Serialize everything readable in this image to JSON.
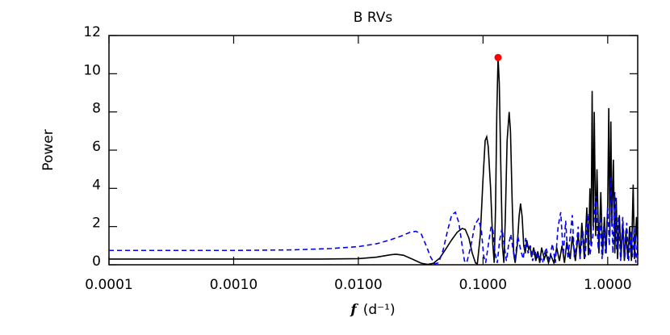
{
  "chart_data": {
    "type": "line",
    "title": "B RVs",
    "ylabel": "Power",
    "xlabel_symbol": "f",
    "xlabel_unit": "(d⁻¹)",
    "xscale": "log",
    "xlim": [
      0.0001,
      1.74
    ],
    "ylim": [
      0,
      12
    ],
    "xticks": [
      {
        "value": 0.0001,
        "label": "0.0001"
      },
      {
        "value": 0.001,
        "label": "0.0010"
      },
      {
        "value": 0.01,
        "label": "0.0100"
      },
      {
        "value": 0.1,
        "label": "0.1000"
      },
      {
        "value": 1,
        "label": "1.0000"
      }
    ],
    "yticks": [
      0,
      2,
      4,
      6,
      8,
      10,
      12
    ],
    "series": [
      {
        "color": "#000000",
        "dash": "solid",
        "x": [
          0.0001,
          0.001,
          0.005,
          0.01,
          0.014,
          0.018,
          0.02,
          0.023,
          0.027,
          0.032,
          0.036,
          0.04,
          0.045,
          0.05,
          0.056,
          0.062,
          0.068,
          0.072,
          0.077,
          0.082,
          0.087,
          0.09,
          0.095,
          0.1,
          0.104,
          0.107,
          0.11,
          0.115,
          0.12,
          0.123,
          0.126,
          0.129,
          0.132,
          0.135,
          0.139,
          0.143,
          0.147,
          0.151,
          0.156,
          0.162,
          0.166,
          0.171,
          0.176,
          0.181,
          0.188,
          0.195,
          0.2,
          0.206,
          0.212,
          0.218,
          0.224,
          0.232,
          0.238,
          0.245,
          0.255,
          0.265,
          0.275,
          0.285,
          0.295,
          0.31,
          0.32,
          0.335,
          0.35,
          0.37,
          0.39,
          0.41,
          0.43,
          0.45,
          0.47,
          0.5,
          0.52,
          0.55,
          0.58,
          0.6,
          0.62,
          0.65,
          0.68,
          0.7,
          0.72,
          0.735,
          0.75,
          0.765,
          0.78,
          0.8,
          0.82,
          0.85,
          0.88,
          0.91,
          0.94,
          0.97,
          1.0,
          1.02,
          1.04,
          1.06,
          1.08,
          1.11,
          1.14,
          1.17,
          1.2,
          1.24,
          1.28,
          1.32,
          1.36,
          1.4,
          1.45,
          1.5,
          1.55,
          1.6,
          1.64,
          1.7,
          1.74
        ],
        "values": [
          0.3,
          0.3,
          0.3,
          0.32,
          0.4,
          0.52,
          0.55,
          0.5,
          0.3,
          0.08,
          0.02,
          0.08,
          0.35,
          0.8,
          1.3,
          1.7,
          1.9,
          1.85,
          1.4,
          0.6,
          0.1,
          0.05,
          1.5,
          4.5,
          6.5,
          6.7,
          6.2,
          4.0,
          1.0,
          0.1,
          3.0,
          8.0,
          10.85,
          9.5,
          5.0,
          1.0,
          0.1,
          2.5,
          6.5,
          8.0,
          7.0,
          3.5,
          0.6,
          0.1,
          1.0,
          2.6,
          3.2,
          2.5,
          1.0,
          0.6,
          1.3,
          0.8,
          1.0,
          0.4,
          0.9,
          0.2,
          0.7,
          0.1,
          0.9,
          0.3,
          0.6,
          0.1,
          0.5,
          0.1,
          0.9,
          0.2,
          1.0,
          0.1,
          1.2,
          0.3,
          1.5,
          0.2,
          1.6,
          0.4,
          2.2,
          0.3,
          3.0,
          0.5,
          4.0,
          1.0,
          9.1,
          2.0,
          8.0,
          1.5,
          5.0,
          0.6,
          3.8,
          0.5,
          2.5,
          0.6,
          3.2,
          8.2,
          1.5,
          7.5,
          2.0,
          5.5,
          0.6,
          3.5,
          0.3,
          2.6,
          0.4,
          2.2,
          0.2,
          1.8,
          0.3,
          2.0,
          0.2,
          4.2,
          0.3,
          2.5,
          0.5
        ]
      },
      {
        "color": "#0000ff",
        "dash": "dashed",
        "x": [
          0.0001,
          0.001,
          0.003,
          0.006,
          0.01,
          0.014,
          0.018,
          0.022,
          0.026,
          0.029,
          0.032,
          0.035,
          0.038,
          0.041,
          0.044,
          0.048,
          0.052,
          0.056,
          0.06,
          0.064,
          0.068,
          0.071,
          0.074,
          0.08,
          0.086,
          0.092,
          0.097,
          0.101,
          0.105,
          0.11,
          0.116,
          0.12,
          0.125,
          0.13,
          0.136,
          0.142,
          0.148,
          0.154,
          0.16,
          0.167,
          0.174,
          0.181,
          0.19,
          0.2,
          0.21,
          0.22,
          0.23,
          0.24,
          0.25,
          0.26,
          0.27,
          0.28,
          0.3,
          0.32,
          0.34,
          0.36,
          0.38,
          0.4,
          0.42,
          0.44,
          0.46,
          0.48,
          0.5,
          0.52,
          0.54,
          0.56,
          0.58,
          0.6,
          0.63,
          0.66,
          0.69,
          0.72,
          0.76,
          0.8,
          0.84,
          0.87,
          0.9,
          0.93,
          0.96,
          1.0,
          1.03,
          1.06,
          1.1,
          1.14,
          1.18,
          1.22,
          1.27,
          1.32,
          1.37,
          1.42,
          1.47,
          1.53,
          1.58,
          1.63,
          1.68,
          1.74
        ],
        "values": [
          0.75,
          0.75,
          0.78,
          0.85,
          0.95,
          1.1,
          1.3,
          1.5,
          1.7,
          1.75,
          1.6,
          1.0,
          0.4,
          0.05,
          0.1,
          0.8,
          1.8,
          2.6,
          2.75,
          2.2,
          1.0,
          0.2,
          0.1,
          1.0,
          2.1,
          2.4,
          1.8,
          0.5,
          0.1,
          1.0,
          2.0,
          1.8,
          0.6,
          0.1,
          1.3,
          1.9,
          1.0,
          0.2,
          1.0,
          1.6,
          0.8,
          0.3,
          1.5,
          0.8,
          0.3,
          1.4,
          0.6,
          1.0,
          0.2,
          0.8,
          0.3,
          0.6,
          0.1,
          0.9,
          0.2,
          1.1,
          0.1,
          2.0,
          2.75,
          0.5,
          2.3,
          0.3,
          1.5,
          2.6,
          0.4,
          1.0,
          2.0,
          0.3,
          1.8,
          0.4,
          2.7,
          0.5,
          1.5,
          3.6,
          0.8,
          2.5,
          0.3,
          2.0,
          0.6,
          3.0,
          1.0,
          4.6,
          0.6,
          3.8,
          0.8,
          2.5,
          0.2,
          2.5,
          0.3,
          2.2,
          0.2,
          1.8,
          0.4,
          2.0,
          0.1,
          1.5
        ]
      }
    ],
    "peak": {
      "x": 0.132,
      "y": 10.85,
      "color": "#ff0000"
    }
  }
}
